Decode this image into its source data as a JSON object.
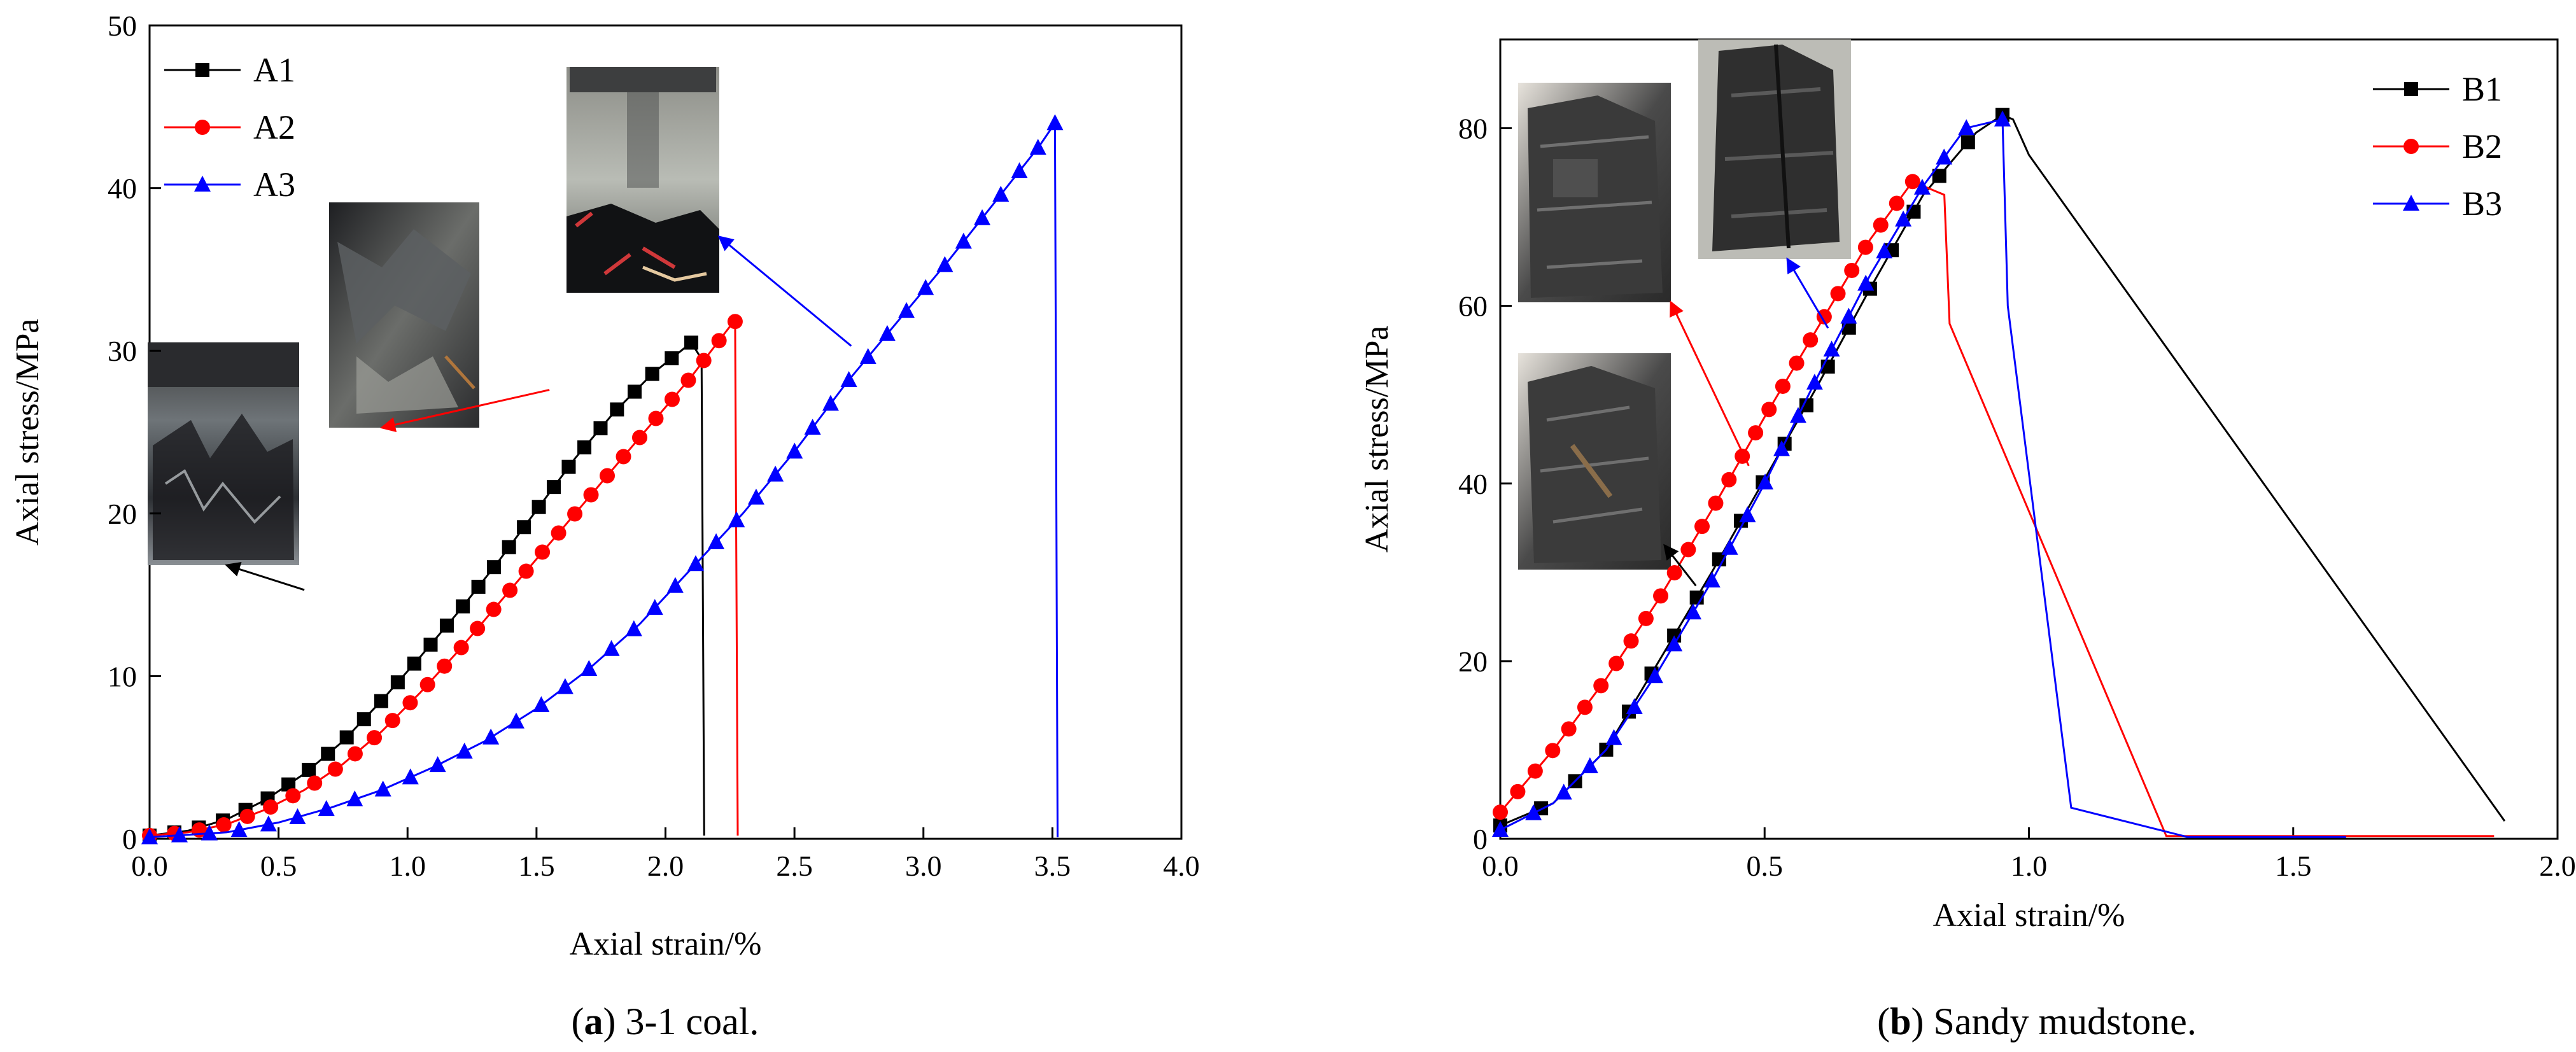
{
  "chart_data": [
    {
      "type": "line",
      "xlabel": "Axial strain/%",
      "ylabel": "Axial stress/MPa",
      "xlim": [
        0,
        4
      ],
      "ylim": [
        0,
        50
      ],
      "xticks": [
        "0.0",
        "0.5",
        "1.0",
        "1.5",
        "2.0",
        "2.5",
        "3.0",
        "3.5",
        "4.0"
      ],
      "yticks": [
        "0",
        "10",
        "20",
        "30",
        "40",
        "50"
      ],
      "legend_position": "top-left",
      "caption": {
        "label": "a",
        "pre": "(",
        "post": ") 3-1 coal."
      },
      "series": [
        {
          "name": "A1",
          "color": "#000000",
          "marker": "square",
          "points": [
            [
              0.0,
              0.2
            ],
            [
              0.15,
              0.5
            ],
            [
              0.3,
              1.2
            ],
            [
              0.45,
              2.4
            ],
            [
              0.6,
              4.0
            ],
            [
              0.75,
              6.0
            ],
            [
              0.9,
              8.5
            ],
            [
              1.05,
              11.2
            ],
            [
              1.2,
              14.0
            ],
            [
              1.35,
              17.0
            ],
            [
              1.5,
              20.2
            ],
            [
              1.65,
              23.4
            ],
            [
              1.8,
              26.2
            ],
            [
              1.95,
              28.6
            ],
            [
              2.1,
              30.5
            ],
            [
              2.14,
              29.5
            ],
            [
              2.15,
              0.2
            ]
          ],
          "marked": 30
        },
        {
          "name": "A2",
          "color": "#ff0000",
          "marker": "circle",
          "points": [
            [
              0.0,
              0.2
            ],
            [
              0.15,
              0.4
            ],
            [
              0.3,
              0.9
            ],
            [
              0.45,
              1.8
            ],
            [
              0.6,
              3.0
            ],
            [
              0.75,
              4.6
            ],
            [
              0.9,
              6.6
            ],
            [
              1.05,
              9.0
            ],
            [
              1.2,
              11.6
            ],
            [
              1.35,
              14.4
            ],
            [
              1.5,
              17.2
            ],
            [
              1.65,
              20.0
            ],
            [
              1.8,
              22.8
            ],
            [
              1.95,
              25.6
            ],
            [
              2.1,
              28.4
            ],
            [
              2.25,
              31.5
            ],
            [
              2.27,
              31.8
            ],
            [
              2.28,
              0.2
            ]
          ],
          "marked": 32
        },
        {
          "name": "A3",
          "color": "#0000ff",
          "marker": "triangle",
          "points": [
            [
              0.0,
              0.1
            ],
            [
              0.3,
              0.4
            ],
            [
              0.5,
              1.0
            ],
            [
              0.7,
              1.9
            ],
            [
              0.9,
              3.0
            ],
            [
              1.1,
              4.4
            ],
            [
              1.3,
              6.0
            ],
            [
              1.5,
              8.0
            ],
            [
              1.7,
              10.4
            ],
            [
              1.9,
              13.2
            ],
            [
              2.1,
              16.6
            ],
            [
              2.3,
              20.0
            ],
            [
              2.5,
              23.8
            ],
            [
              2.7,
              28.0
            ],
            [
              2.9,
              31.8
            ],
            [
              3.1,
              35.6
            ],
            [
              3.3,
              39.6
            ],
            [
              3.45,
              42.6
            ],
            [
              3.51,
              44.0
            ],
            [
              3.52,
              0.1
            ]
          ],
          "marked": 40
        }
      ],
      "inset_photos": [
        {
          "color": "#000000",
          "tip": [
            0.6,
            15.3
          ]
        },
        {
          "color": "#ff0000",
          "tip": [
            1.55,
            27.6
          ]
        },
        {
          "color": "#0000ff",
          "tip": [
            2.72,
            30.3
          ]
        }
      ]
    },
    {
      "type": "line",
      "xlabel": "Axial strain/%",
      "ylabel": "Axial stress/MPa",
      "xlim": [
        0,
        2
      ],
      "ylim": [
        0,
        90
      ],
      "xticks": [
        "0.0",
        "0.5",
        "1.0",
        "1.5",
        "2.0"
      ],
      "yticks": [
        "0",
        "20",
        "40",
        "60",
        "80"
      ],
      "legend_position": "top-right",
      "caption": {
        "label": "b",
        "pre": "(",
        "post": ") Sandy mudstone."
      },
      "series": [
        {
          "name": "B1",
          "color": "#000000",
          "marker": "square",
          "points": [
            [
              0.0,
              1.5
            ],
            [
              0.1,
              4.0
            ],
            [
              0.2,
              10.0
            ],
            [
              0.3,
              20.0
            ],
            [
              0.4,
              30.0
            ],
            [
              0.5,
              40.5
            ],
            [
              0.6,
              51.0
            ],
            [
              0.7,
              62.0
            ],
            [
              0.8,
              72.5
            ],
            [
              0.9,
              79.5
            ],
            [
              0.95,
              81.5
            ],
            [
              0.97,
              81.0
            ],
            [
              1.0,
              77.0
            ],
            [
              1.9,
              2.0
            ]
          ],
          "marked": 20
        },
        {
          "name": "B2",
          "color": "#ff0000",
          "marker": "circle",
          "points": [
            [
              0.0,
              3.0
            ],
            [
              0.1,
              10.0
            ],
            [
              0.2,
              18.0
            ],
            [
              0.3,
              27.0
            ],
            [
              0.4,
              37.0
            ],
            [
              0.5,
              47.5
            ],
            [
              0.6,
              57.5
            ],
            [
              0.7,
              67.5
            ],
            [
              0.78,
              74.0
            ],
            [
              0.84,
              72.5
            ],
            [
              0.85,
              58.0
            ],
            [
              1.26,
              0.3
            ],
            [
              1.88,
              0.3
            ]
          ],
          "marked": 28
        },
        {
          "name": "B3",
          "color": "#0000ff",
          "marker": "triangle",
          "points": [
            [
              0.0,
              1.0
            ],
            [
              0.1,
              4.0
            ],
            [
              0.2,
              10.0
            ],
            [
              0.3,
              19.0
            ],
            [
              0.4,
              29.0
            ],
            [
              0.5,
              40.0
            ],
            [
              0.6,
              52.0
            ],
            [
              0.7,
              63.5
            ],
            [
              0.8,
              73.5
            ],
            [
              0.88,
              80.0
            ],
            [
              0.95,
              81.0
            ],
            [
              0.96,
              60.0
            ],
            [
              1.08,
              3.5
            ],
            [
              1.3,
              0.2
            ],
            [
              1.6,
              0.2
            ]
          ],
          "marked": 24
        }
      ],
      "inset_photos": [
        {
          "color": "#000000",
          "tip": [
            0.37,
            28.5
          ]
        },
        {
          "color": "#ff0000",
          "tip": [
            0.47,
            42.0
          ]
        },
        {
          "color": "#0000ff",
          "tip": [
            0.62,
            57.5
          ]
        }
      ]
    }
  ]
}
